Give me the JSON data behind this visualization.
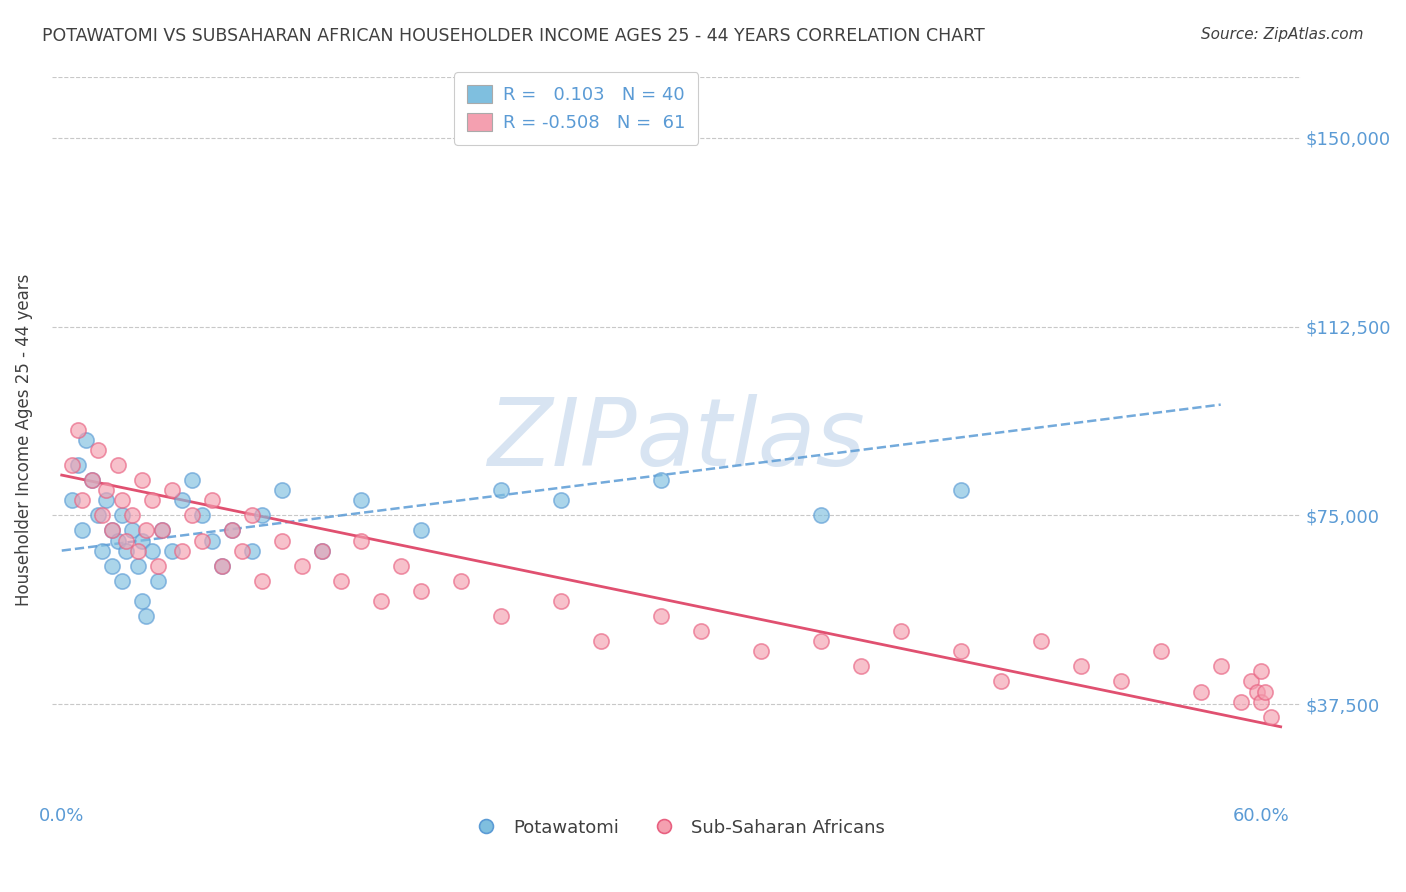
{
  "title": "POTAWATOMI VS SUBSAHARAN AFRICAN HOUSEHOLDER INCOME AGES 25 - 44 YEARS CORRELATION CHART",
  "source": "Source: ZipAtlas.com",
  "ylabel": "Householder Income Ages 25 - 44 years",
  "xlim": [
    -0.005,
    0.62
  ],
  "ylim": [
    18000,
    162000
  ],
  "yticks": [
    37500,
    75000,
    112500,
    150000
  ],
  "ytick_labels": [
    "$37,500",
    "$75,000",
    "$112,500",
    "$150,000"
  ],
  "blue_R": 0.103,
  "blue_N": 40,
  "pink_R": -0.508,
  "pink_N": 61,
  "blue_color": "#7fbfdf",
  "pink_color": "#f4a0b0",
  "blue_edge_color": "#5b9bd5",
  "pink_edge_color": "#e86080",
  "blue_line_color": "#5b9bd5",
  "pink_line_color": "#e05070",
  "blue_label": "Potawatomi",
  "pink_label": "Sub-Saharan Africans",
  "title_color": "#404040",
  "axis_label_color": "#5b9bd5",
  "legend_text_color": "#5b9bd5",
  "background_color": "#ffffff",
  "grid_color": "#c8c8c8",
  "blue_scatter_x": [
    0.005,
    0.008,
    0.01,
    0.012,
    0.015,
    0.018,
    0.02,
    0.022,
    0.025,
    0.025,
    0.028,
    0.03,
    0.03,
    0.032,
    0.035,
    0.038,
    0.04,
    0.04,
    0.042,
    0.045,
    0.048,
    0.05,
    0.055,
    0.06,
    0.065,
    0.07,
    0.075,
    0.08,
    0.085,
    0.095,
    0.1,
    0.11,
    0.13,
    0.15,
    0.18,
    0.22,
    0.25,
    0.3,
    0.38,
    0.45
  ],
  "blue_scatter_y": [
    78000,
    85000,
    72000,
    90000,
    82000,
    75000,
    68000,
    78000,
    72000,
    65000,
    70000,
    62000,
    75000,
    68000,
    72000,
    65000,
    58000,
    70000,
    55000,
    68000,
    62000,
    72000,
    68000,
    78000,
    82000,
    75000,
    70000,
    65000,
    72000,
    68000,
    75000,
    80000,
    68000,
    78000,
    72000,
    80000,
    78000,
    82000,
    75000,
    80000
  ],
  "pink_scatter_x": [
    0.005,
    0.008,
    0.01,
    0.015,
    0.018,
    0.02,
    0.022,
    0.025,
    0.028,
    0.03,
    0.032,
    0.035,
    0.038,
    0.04,
    0.042,
    0.045,
    0.048,
    0.05,
    0.055,
    0.06,
    0.065,
    0.07,
    0.075,
    0.08,
    0.085,
    0.09,
    0.095,
    0.1,
    0.11,
    0.12,
    0.13,
    0.14,
    0.15,
    0.16,
    0.17,
    0.18,
    0.2,
    0.22,
    0.25,
    0.27,
    0.3,
    0.32,
    0.35,
    0.38,
    0.4,
    0.42,
    0.45,
    0.47,
    0.49,
    0.51,
    0.53,
    0.55,
    0.57,
    0.58,
    0.59,
    0.595,
    0.598,
    0.6,
    0.6,
    0.602,
    0.605
  ],
  "pink_scatter_y": [
    85000,
    92000,
    78000,
    82000,
    88000,
    75000,
    80000,
    72000,
    85000,
    78000,
    70000,
    75000,
    68000,
    82000,
    72000,
    78000,
    65000,
    72000,
    80000,
    68000,
    75000,
    70000,
    78000,
    65000,
    72000,
    68000,
    75000,
    62000,
    70000,
    65000,
    68000,
    62000,
    70000,
    58000,
    65000,
    60000,
    62000,
    55000,
    58000,
    50000,
    55000,
    52000,
    48000,
    50000,
    45000,
    52000,
    48000,
    42000,
    50000,
    45000,
    42000,
    48000,
    40000,
    45000,
    38000,
    42000,
    40000,
    38000,
    44000,
    40000,
    35000
  ],
  "blue_trend": [
    0.0,
    0.58,
    68000,
    97000
  ],
  "pink_trend": [
    0.0,
    0.61,
    83000,
    33000
  ],
  "watermark": "ZIPatlas",
  "watermark_color": "#b8cfe8",
  "watermark_alpha": 0.55
}
